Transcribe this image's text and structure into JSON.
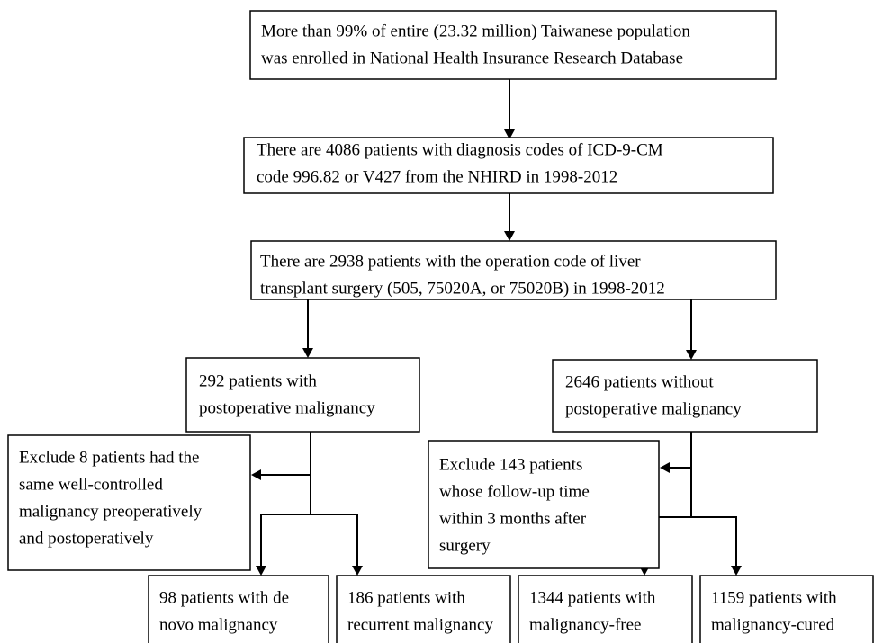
{
  "nodes": [
    {
      "lines": [
        "More than 99% of entire (23.32 million) Taiwanese population",
        "was enrolled in National Health Insurance Research Database"
      ]
    },
    {
      "lines": [
        "There are 4086 patients with diagnosis codes of ICD-9-CM",
        "code 996.82 or V427 from the NHIRD in 1998-2012"
      ]
    },
    {
      "lines": [
        "There are 2938 patients with the operation code of liver",
        "transplant surgery (505, 75020A, or 75020B) in 1998-2012"
      ]
    },
    {
      "lines": [
        "292 patients with",
        "postoperative malignancy"
      ]
    },
    {
      "lines": [
        "2646 patients without",
        "postoperative malignancy"
      ]
    },
    {
      "lines": [
        "Exclude 8 patients had the",
        "same well-controlled",
        "malignancy preoperatively",
        "and postoperatively"
      ]
    },
    {
      "lines": [
        "Exclude 143 patients",
        "whose follow-up time",
        "within 3 months after",
        "surgery"
      ]
    },
    {
      "lines": [
        "98 patients with de",
        "novo malignancy"
      ]
    },
    {
      "lines": [
        "186 patients with",
        "recurrent malignancy"
      ]
    },
    {
      "lines": [
        "1344 patients with",
        "malignancy-free"
      ]
    },
    {
      "lines": [
        "1159 patients with",
        "malignancy-cured"
      ]
    }
  ]
}
